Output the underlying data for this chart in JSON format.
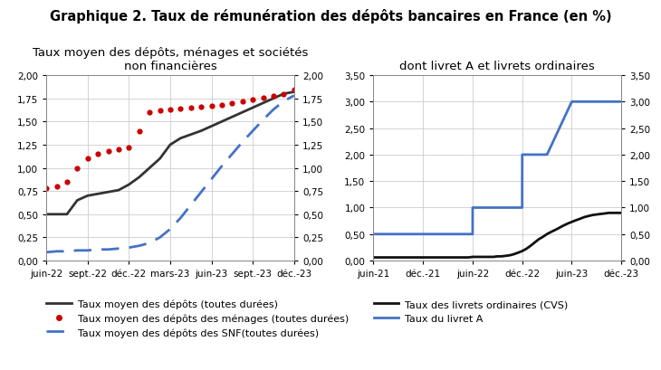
{
  "title": "Graphique 2. Taux de rémunération des dépôts bancaires en France (en %)",
  "left_subtitle": "Taux moyen des dépôts, ménages et sociétés\nnon financières",
  "right_subtitle": "dont livret A et livrets ordinaires",
  "left_x_labels": [
    "juin-22",
    "sept.-22",
    "déc.-22",
    "mars-23",
    "juin-23",
    "sept.-23",
    "déc.-23"
  ],
  "left_ylim": [
    0.0,
    2.0
  ],
  "left_yticks": [
    0.0,
    0.25,
    0.5,
    0.75,
    1.0,
    1.25,
    1.5,
    1.75,
    2.0
  ],
  "right_x_labels": [
    "juin-21",
    "déc.-21",
    "juin-22",
    "déc.-22",
    "juin-23",
    "déc.-23"
  ],
  "right_ylim": [
    0.0,
    3.5
  ],
  "right_yticks": [
    0.0,
    0.5,
    1.0,
    1.5,
    2.0,
    2.5,
    3.0,
    3.5
  ],
  "s1_y": [
    0.5,
    0.5,
    0.5,
    0.65,
    0.7,
    0.72,
    0.74,
    0.76,
    0.82,
    0.9,
    1.0,
    1.1,
    1.25,
    1.32,
    1.36,
    1.4,
    1.45,
    1.5,
    1.55,
    1.6,
    1.65,
    1.7,
    1.75,
    1.8,
    1.82
  ],
  "s1_color": "#333333",
  "s1_lw": 2.0,
  "s1_label": "Taux moyen des dépôts (toutes durées)",
  "s2_y": [
    0.78,
    0.8,
    0.85,
    1.0,
    1.1,
    1.15,
    1.18,
    1.2,
    1.22,
    1.4,
    1.6,
    1.62,
    1.63,
    1.64,
    1.65,
    1.66,
    1.67,
    1.68,
    1.7,
    1.72,
    1.74,
    1.76,
    1.78,
    1.8,
    1.84
  ],
  "s2_color": "#cc0000",
  "s2_lw": 2.0,
  "s2_label": "Taux moyen des dépôts des ménages (toutes durées)",
  "s3_y": [
    0.09,
    0.1,
    0.1,
    0.11,
    0.11,
    0.12,
    0.12,
    0.13,
    0.14,
    0.16,
    0.19,
    0.25,
    0.34,
    0.46,
    0.6,
    0.74,
    0.88,
    1.02,
    1.15,
    1.28,
    1.4,
    1.52,
    1.63,
    1.72,
    1.78
  ],
  "s3_color": "#4472c4",
  "s3_lw": 2.0,
  "s3_label": "Taux moyen des dépôts des SNF(toutes durées)",
  "r_livret_x": [
    0.0,
    0.08,
    0.17,
    0.25,
    0.33,
    0.42,
    0.5,
    0.58,
    0.67,
    0.75,
    0.83,
    0.92,
    1.0,
    1.08,
    1.17,
    1.25,
    1.33,
    1.42,
    1.5,
    1.58,
    1.67,
    1.75,
    1.83,
    1.92,
    2.0,
    2.08,
    2.17,
    2.25,
    2.33,
    2.42,
    2.5,
    2.58,
    2.67,
    2.75,
    2.83,
    2.92,
    3.0,
    3.08,
    3.17,
    3.25,
    3.33,
    3.42,
    3.5,
    3.58,
    3.67,
    3.75,
    3.83,
    3.92,
    4.0,
    4.08,
    4.17,
    4.25,
    4.33,
    4.42,
    4.5,
    4.58,
    4.67,
    4.75,
    4.83,
    4.92,
    5.0
  ],
  "r_livret_y": [
    0.06,
    0.06,
    0.06,
    0.06,
    0.06,
    0.06,
    0.06,
    0.06,
    0.06,
    0.06,
    0.06,
    0.06,
    0.06,
    0.06,
    0.06,
    0.06,
    0.06,
    0.06,
    0.06,
    0.06,
    0.06,
    0.06,
    0.06,
    0.06,
    0.07,
    0.07,
    0.07,
    0.07,
    0.07,
    0.07,
    0.08,
    0.08,
    0.09,
    0.1,
    0.12,
    0.15,
    0.18,
    0.22,
    0.28,
    0.34,
    0.4,
    0.45,
    0.5,
    0.54,
    0.58,
    0.62,
    0.66,
    0.7,
    0.73,
    0.76,
    0.79,
    0.82,
    0.84,
    0.86,
    0.87,
    0.88,
    0.89,
    0.9,
    0.9,
    0.9,
    0.9
  ],
  "r_livret_color": "#111111",
  "r_livret_lw": 2.0,
  "r_livret_label": "Taux des livrets ordinaires (CVS)",
  "r_livretA_x": [
    0.0,
    1.0,
    1.001,
    2.0,
    2.001,
    2.5,
    2.501,
    3.0,
    3.001,
    3.5,
    3.501,
    4.0,
    4.001,
    5.0
  ],
  "r_livretA_y": [
    0.5,
    0.5,
    0.5,
    0.5,
    1.0,
    1.0,
    1.0,
    1.0,
    2.0,
    2.0,
    2.0,
    3.0,
    3.0,
    3.0
  ],
  "r_livretA_color": "#4472c4",
  "r_livretA_lw": 2.0,
  "r_livretA_label": "Taux du livret A",
  "grid_color": "#cccccc",
  "bg_color": "#ffffff",
  "title_fontsize": 10.5,
  "subtitle_fontsize": 9.5,
  "tick_fontsize": 7.5,
  "legend_fontsize": 8
}
